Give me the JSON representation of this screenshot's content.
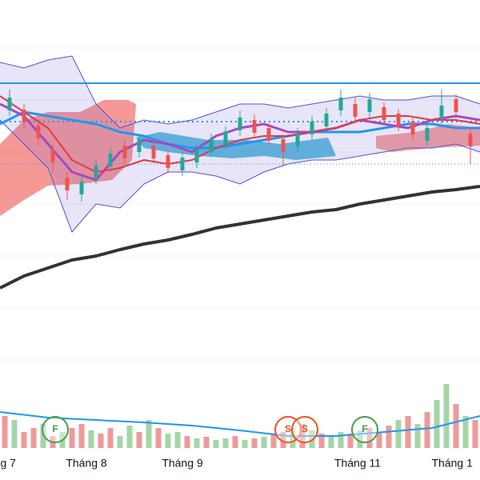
{
  "chart_data": {
    "type": "candlestick",
    "xlim": [
      0,
      100
    ],
    "ylim": [
      35,
      600
    ],
    "y2lim": [
      0,
      100
    ],
    "xticks": [
      {
        "value": 1.7,
        "label": "g 7"
      },
      {
        "value": 18,
        "label": "Tháng 8"
      },
      {
        "value": 38,
        "label": "Tháng 9"
      },
      {
        "value": 74.5,
        "label": "Tháng 11"
      },
      {
        "value": 94.2,
        "label": "Tháng 1"
      }
    ],
    "x": [
      2,
      5,
      8,
      11,
      14,
      17,
      20,
      23,
      26,
      29,
      32,
      35,
      38,
      41,
      44,
      47,
      50,
      53,
      56,
      59,
      62,
      65,
      68,
      71,
      74,
      77,
      80,
      83,
      86,
      89,
      92,
      95,
      98
    ],
    "open": [
      462,
      463,
      443,
      413,
      378,
      357,
      377,
      392,
      418,
      410,
      418,
      406,
      387,
      397,
      410,
      420,
      437,
      450,
      440,
      426,
      417,
      432,
      442,
      462,
      470,
      460,
      466,
      458,
      448,
      424,
      452,
      476,
      433
    ],
    "close": [
      478,
      447,
      427,
      397,
      362,
      373,
      393,
      408,
      402,
      426,
      402,
      390,
      403,
      413,
      426,
      436,
      453,
      434,
      424,
      410,
      433,
      448,
      458,
      478,
      454,
      476,
      450,
      442,
      432,
      440,
      468,
      460,
      417
    ],
    "high": [
      488,
      470,
      452,
      420,
      385,
      380,
      400,
      415,
      425,
      432,
      426,
      412,
      410,
      420,
      433,
      442,
      462,
      457,
      446,
      432,
      440,
      455,
      465,
      488,
      478,
      484,
      472,
      464,
      455,
      446,
      488,
      482,
      440
    ],
    "low": [
      455,
      440,
      418,
      385,
      350,
      348,
      370,
      385,
      395,
      403,
      396,
      384,
      380,
      390,
      404,
      414,
      430,
      428,
      418,
      392,
      410,
      425,
      436,
      455,
      448,
      452,
      444,
      436,
      425,
      418,
      445,
      452,
      395
    ],
    "up_color": "#26a69a",
    "down_color": "#ef5350",
    "overlay_x": [
      0,
      5,
      10,
      15,
      20,
      25,
      30,
      35,
      40,
      45,
      50,
      55,
      60,
      65,
      70,
      75,
      80,
      85,
      90,
      95,
      100
    ],
    "band": {
      "color": "#5b4fd6",
      "fill": "rgba(120,110,210,0.18)",
      "upper": [
        522,
        515,
        525,
        530,
        470,
        440,
        450,
        445,
        450,
        460,
        470,
        470,
        465,
        470,
        475,
        480,
        475,
        475,
        480,
        480,
        470
      ],
      "lower": [
        450,
        420,
        390,
        310,
        345,
        340,
        370,
        385,
        385,
        380,
        370,
        385,
        395,
        400,
        400,
        405,
        410,
        415,
        415,
        420,
        410
      ]
    },
    "overlays": [
      {
        "color": "#2196f3",
        "width": 3,
        "values": [
          445,
          460,
          455,
          450,
          445,
          435,
          430,
          420,
          415,
          415,
          420,
          425,
          430,
          435,
          435,
          435,
          440,
          445,
          445,
          440,
          440
        ]
      },
      {
        "color": "#ab47bc",
        "width": 3,
        "values": [
          470,
          455,
          420,
          385,
          375,
          410,
          425,
          420,
          410,
          430,
          440,
          445,
          435,
          435,
          440,
          450,
          445,
          440,
          450,
          455,
          450
        ]
      },
      {
        "color": "#e53945",
        "width": 2,
        "values": [
          480,
          460,
          440,
          400,
          385,
          390,
          400,
          395,
          400,
          415,
          425,
          430,
          430,
          435,
          440,
          450,
          455,
          455,
          450,
          450,
          445
        ]
      },
      {
        "color": "#333333",
        "width": 4,
        "values": [
          240,
          255,
          265,
          275,
          280,
          288,
          295,
          300,
          307,
          315,
          320,
          325,
          330,
          335,
          338,
          345,
          350,
          355,
          360,
          363,
          367
        ]
      }
    ],
    "levels": [
      {
        "value": 496,
        "color": "#2196f3",
        "dash": "none",
        "width": 2
      },
      {
        "value": 448,
        "color": "#2196f3",
        "dash": "2 4",
        "width": 2
      },
      {
        "value": 395,
        "color": "#2196f3",
        "dash": "1 3",
        "width": 1
      }
    ],
    "volume": {
      "x": [
        1,
        3,
        5,
        7,
        9,
        11,
        13,
        15,
        17,
        19,
        21,
        23,
        25,
        27,
        29,
        31,
        33,
        35,
        37,
        39,
        41,
        43,
        45,
        47,
        49,
        51,
        53,
        55,
        57,
        59,
        61,
        63,
        65,
        67,
        69,
        71,
        73,
        75,
        77,
        79,
        81,
        83,
        85,
        87,
        89,
        91,
        93,
        95,
        97,
        99
      ],
      "values": [
        40,
        35,
        20,
        25,
        30,
        15,
        20,
        25,
        30,
        22,
        18,
        25,
        15,
        28,
        20,
        35,
        25,
        18,
        20,
        15,
        12,
        14,
        10,
        12,
        15,
        10,
        12,
        14,
        18,
        20,
        25,
        30,
        22,
        18,
        15,
        20,
        18,
        22,
        25,
        20,
        28,
        35,
        40,
        30,
        45,
        60,
        80,
        55,
        40,
        35
      ],
      "colors": [
        "#ef9a9a",
        "#a5d6a7",
        "#ef9a9a",
        "#ef9a9a",
        "#a5d6a7",
        "#ef9a9a",
        "#a5d6a7",
        "#ef9a9a",
        "#ef9a9a",
        "#a5d6a7",
        "#ef9a9a",
        "#ef9a9a",
        "#a5d6a7",
        "#a5d6a7",
        "#ef9a9a",
        "#a5d6a7",
        "#ef9a9a",
        "#a5d6a7",
        "#a5d6a7",
        "#ef9a9a",
        "#a5d6a7",
        "#ef9a9a",
        "#a5d6a7",
        "#a5d6a7",
        "#ef9a9a",
        "#a5d6a7",
        "#ef9a9a",
        "#a5d6a7",
        "#ef9a9a",
        "#ef9a9a",
        "#a5d6a7",
        "#ef9a9a",
        "#a5d6a7",
        "#ef9a9a",
        "#a5d6a7",
        "#a5d6a7",
        "#ef9a9a",
        "#a5d6a7",
        "#ef9a9a",
        "#ef9a9a",
        "#ef9a9a",
        "#a5d6a7",
        "#ef9a9a",
        "#a5d6a7",
        "#ef9a9a",
        "#a5d6a7",
        "#a5d6a7",
        "#ef9a9a",
        "#a5d6a7",
        "#ef9a9a"
      ],
      "ma": {
        "color": "#2196f3",
        "x": [
          0,
          10,
          20,
          30,
          40,
          50,
          60,
          70,
          80,
          90,
          100
        ],
        "values": [
          45,
          38,
          35,
          32,
          28,
          22,
          15,
          15,
          20,
          25,
          40
        ]
      }
    },
    "events": [
      {
        "label": "F",
        "x": 11.5,
        "color": "#43a047"
      },
      {
        "label": "S",
        "x": 60,
        "color": "#f4511e"
      },
      {
        "label": "S",
        "x": 63.5,
        "color": "#f4511e"
      },
      {
        "label": "F",
        "x": 76,
        "color": "#43a047"
      }
    ]
  }
}
